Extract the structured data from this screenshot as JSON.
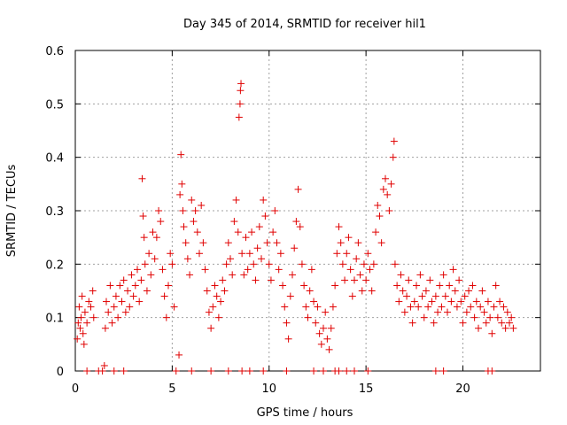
{
  "chart_data": {
    "type": "scatter",
    "title": "Day 345 of 2014, SRMTID for receiver hil1",
    "xlabel": "GPS time / hours",
    "ylabel": "SRMTID / TECUs",
    "xlim": [
      0,
      24
    ],
    "ylim": [
      0,
      0.6
    ],
    "xticks": [
      0,
      5,
      10,
      15,
      20
    ],
    "yticks": [
      0,
      0.1,
      0.2,
      0.3,
      0.4,
      0.5,
      0.6
    ],
    "xtick_labels": [
      "0",
      "5",
      "10",
      "15",
      "20"
    ],
    "ytick_labels": [
      "0",
      "0.1",
      "0.2",
      "0.3",
      "0.4",
      "0.5",
      "0.6"
    ],
    "grid": true,
    "marker": "+",
    "color": "#e00000",
    "series": [
      {
        "name": "SRMTID",
        "points": [
          [
            0.1,
            0.06
          ],
          [
            0.15,
            0.09
          ],
          [
            0.2,
            0.12
          ],
          [
            0.25,
            0.08
          ],
          [
            0.3,
            0.1
          ],
          [
            0.35,
            0.14
          ],
          [
            0.4,
            0.07
          ],
          [
            0.45,
            0.05
          ],
          [
            0.5,
            0.11
          ],
          [
            0.6,
            0.09
          ],
          [
            0.7,
            0.13
          ],
          [
            0.8,
            0.12
          ],
          [
            0.9,
            0.15
          ],
          [
            0.95,
            0.1
          ],
          [
            1.5,
            0.01
          ],
          [
            1.55,
            0.08
          ],
          [
            1.6,
            0.13
          ],
          [
            1.7,
            0.11
          ],
          [
            1.8,
            0.16
          ],
          [
            1.9,
            0.09
          ],
          [
            2.0,
            0.12
          ],
          [
            2.1,
            0.14
          ],
          [
            2.2,
            0.1
          ],
          [
            2.3,
            0.16
          ],
          [
            2.4,
            0.13
          ],
          [
            2.5,
            0.17
          ],
          [
            2.6,
            0.11
          ],
          [
            2.7,
            0.15
          ],
          [
            2.8,
            0.12
          ],
          [
            2.9,
            0.18
          ],
          [
            3.0,
            0.14
          ],
          [
            3.1,
            0.16
          ],
          [
            3.2,
            0.19
          ],
          [
            3.3,
            0.13
          ],
          [
            3.4,
            0.17
          ],
          [
            3.45,
            0.36
          ],
          [
            3.5,
            0.29
          ],
          [
            3.55,
            0.25
          ],
          [
            3.6,
            0.2
          ],
          [
            3.7,
            0.15
          ],
          [
            3.8,
            0.22
          ],
          [
            3.9,
            0.18
          ],
          [
            4.0,
            0.26
          ],
          [
            4.1,
            0.21
          ],
          [
            4.2,
            0.25
          ],
          [
            4.3,
            0.3
          ],
          [
            4.4,
            0.28
          ],
          [
            4.5,
            0.19
          ],
          [
            4.6,
            0.14
          ],
          [
            4.7,
            0.1
          ],
          [
            4.8,
            0.16
          ],
          [
            4.9,
            0.22
          ],
          [
            5.0,
            0.2
          ],
          [
            5.1,
            0.12
          ],
          [
            5.35,
            0.03
          ],
          [
            5.4,
            0.33
          ],
          [
            5.45,
            0.405
          ],
          [
            5.5,
            0.35
          ],
          [
            5.55,
            0.3
          ],
          [
            5.6,
            0.27
          ],
          [
            5.7,
            0.24
          ],
          [
            5.8,
            0.21
          ],
          [
            5.9,
            0.18
          ],
          [
            6.0,
            0.32
          ],
          [
            6.1,
            0.28
          ],
          [
            6.2,
            0.3
          ],
          [
            6.3,
            0.26
          ],
          [
            6.4,
            0.22
          ],
          [
            6.5,
            0.31
          ],
          [
            6.6,
            0.24
          ],
          [
            6.7,
            0.19
          ],
          [
            6.8,
            0.15
          ],
          [
            6.9,
            0.11
          ],
          [
            7.0,
            0.08
          ],
          [
            7.1,
            0.12
          ],
          [
            7.2,
            0.16
          ],
          [
            7.3,
            0.14
          ],
          [
            7.4,
            0.1
          ],
          [
            7.5,
            0.13
          ],
          [
            7.6,
            0.17
          ],
          [
            7.7,
            0.15
          ],
          [
            7.8,
            0.2
          ],
          [
            7.9,
            0.24
          ],
          [
            8.0,
            0.21
          ],
          [
            8.1,
            0.18
          ],
          [
            8.2,
            0.28
          ],
          [
            8.3,
            0.32
          ],
          [
            8.4,
            0.26
          ],
          [
            8.45,
            0.475
          ],
          [
            8.5,
            0.5
          ],
          [
            8.52,
            0.525
          ],
          [
            8.55,
            0.538
          ],
          [
            8.6,
            0.22
          ],
          [
            8.7,
            0.18
          ],
          [
            8.8,
            0.25
          ],
          [
            8.9,
            0.19
          ],
          [
            9.0,
            0.22
          ],
          [
            9.1,
            0.26
          ],
          [
            9.2,
            0.2
          ],
          [
            9.3,
            0.17
          ],
          [
            9.4,
            0.23
          ],
          [
            9.5,
            0.27
          ],
          [
            9.6,
            0.21
          ],
          [
            9.7,
            0.32
          ],
          [
            9.8,
            0.29
          ],
          [
            9.9,
            0.24
          ],
          [
            10.0,
            0.2
          ],
          [
            10.1,
            0.17
          ],
          [
            10.2,
            0.26
          ],
          [
            10.3,
            0.3
          ],
          [
            10.4,
            0.24
          ],
          [
            10.5,
            0.19
          ],
          [
            10.6,
            0.22
          ],
          [
            10.7,
            0.16
          ],
          [
            10.8,
            0.12
          ],
          [
            10.9,
            0.09
          ],
          [
            11.0,
            0.06
          ],
          [
            11.1,
            0.14
          ],
          [
            11.2,
            0.18
          ],
          [
            11.3,
            0.23
          ],
          [
            11.4,
            0.28
          ],
          [
            11.5,
            0.34
          ],
          [
            11.6,
            0.27
          ],
          [
            11.7,
            0.2
          ],
          [
            11.8,
            0.16
          ],
          [
            11.9,
            0.12
          ],
          [
            12.0,
            0.1
          ],
          [
            12.1,
            0.15
          ],
          [
            12.2,
            0.19
          ],
          [
            12.3,
            0.13
          ],
          [
            12.4,
            0.09
          ],
          [
            12.5,
            0.12
          ],
          [
            12.6,
            0.07
          ],
          [
            12.7,
            0.05
          ],
          [
            12.8,
            0.08
          ],
          [
            12.9,
            0.11
          ],
          [
            13.0,
            0.06
          ],
          [
            13.1,
            0.04
          ],
          [
            13.2,
            0.08
          ],
          [
            13.3,
            0.12
          ],
          [
            13.4,
            0.16
          ],
          [
            13.5,
            0.22
          ],
          [
            13.6,
            0.27
          ],
          [
            13.7,
            0.24
          ],
          [
            13.8,
            0.2
          ],
          [
            13.9,
            0.17
          ],
          [
            14.0,
            0.22
          ],
          [
            14.1,
            0.25
          ],
          [
            14.2,
            0.19
          ],
          [
            14.3,
            0.14
          ],
          [
            14.4,
            0.17
          ],
          [
            14.5,
            0.21
          ],
          [
            14.6,
            0.24
          ],
          [
            14.7,
            0.18
          ],
          [
            14.8,
            0.15
          ],
          [
            14.9,
            0.2
          ],
          [
            15.0,
            0.17
          ],
          [
            15.1,
            0.22
          ],
          [
            15.2,
            0.19
          ],
          [
            15.3,
            0.15
          ],
          [
            15.4,
            0.2
          ],
          [
            15.5,
            0.26
          ],
          [
            15.6,
            0.31
          ],
          [
            15.7,
            0.29
          ],
          [
            15.8,
            0.24
          ],
          [
            15.9,
            0.34
          ],
          [
            16.0,
            0.36
          ],
          [
            16.1,
            0.33
          ],
          [
            16.2,
            0.3
          ],
          [
            16.3,
            0.35
          ],
          [
            16.4,
            0.4
          ],
          [
            16.45,
            0.43
          ],
          [
            16.5,
            0.2
          ],
          [
            16.6,
            0.16
          ],
          [
            16.7,
            0.13
          ],
          [
            16.8,
            0.18
          ],
          [
            16.9,
            0.15
          ],
          [
            17.0,
            0.11
          ],
          [
            17.1,
            0.14
          ],
          [
            17.2,
            0.17
          ],
          [
            17.3,
            0.12
          ],
          [
            17.4,
            0.09
          ],
          [
            17.5,
            0.13
          ],
          [
            17.6,
            0.16
          ],
          [
            17.7,
            0.12
          ],
          [
            17.8,
            0.18
          ],
          [
            17.9,
            0.14
          ],
          [
            18.0,
            0.1
          ],
          [
            18.1,
            0.15
          ],
          [
            18.2,
            0.12
          ],
          [
            18.3,
            0.17
          ],
          [
            18.4,
            0.13
          ],
          [
            18.5,
            0.09
          ],
          [
            18.6,
            0.14
          ],
          [
            18.7,
            0.11
          ],
          [
            18.8,
            0.16
          ],
          [
            18.9,
            0.12
          ],
          [
            19.0,
            0.18
          ],
          [
            19.1,
            0.14
          ],
          [
            19.2,
            0.11
          ],
          [
            19.3,
            0.16
          ],
          [
            19.4,
            0.13
          ],
          [
            19.5,
            0.19
          ],
          [
            19.6,
            0.15
          ],
          [
            19.7,
            0.12
          ],
          [
            19.8,
            0.17
          ],
          [
            19.9,
            0.13
          ],
          [
            20.0,
            0.09
          ],
          [
            20.1,
            0.14
          ],
          [
            20.2,
            0.11
          ],
          [
            20.3,
            0.15
          ],
          [
            20.4,
            0.12
          ],
          [
            20.5,
            0.16
          ],
          [
            20.6,
            0.1
          ],
          [
            20.7,
            0.13
          ],
          [
            20.8,
            0.08
          ],
          [
            20.9,
            0.12
          ],
          [
            21.0,
            0.15
          ],
          [
            21.1,
            0.11
          ],
          [
            21.2,
            0.09
          ],
          [
            21.3,
            0.13
          ],
          [
            21.4,
            0.1
          ],
          [
            21.5,
            0.07
          ],
          [
            21.6,
            0.12
          ],
          [
            21.7,
            0.16
          ],
          [
            21.8,
            0.1
          ],
          [
            21.9,
            0.13
          ],
          [
            22.0,
            0.09
          ],
          [
            22.1,
            0.12
          ],
          [
            22.2,
            0.08
          ],
          [
            22.3,
            0.11
          ],
          [
            22.4,
            0.09
          ],
          [
            22.5,
            0.1
          ],
          [
            22.6,
            0.08
          ],
          [
            0.6,
            0.0
          ],
          [
            1.2,
            0.0
          ],
          [
            1.4,
            0.0
          ],
          [
            2.0,
            0.0
          ],
          [
            2.5,
            0.0
          ],
          [
            5.2,
            0.0
          ],
          [
            6.0,
            0.0
          ],
          [
            7.0,
            0.0
          ],
          [
            7.9,
            0.0
          ],
          [
            8.6,
            0.0
          ],
          [
            9.0,
            0.0
          ],
          [
            9.7,
            0.0
          ],
          [
            10.9,
            0.0
          ],
          [
            12.3,
            0.0
          ],
          [
            12.8,
            0.0
          ],
          [
            13.4,
            0.0
          ],
          [
            13.6,
            0.0
          ],
          [
            14.0,
            0.0
          ],
          [
            14.4,
            0.0
          ],
          [
            15.1,
            0.0
          ],
          [
            18.6,
            0.0
          ],
          [
            19.0,
            0.0
          ],
          [
            21.3,
            0.0
          ],
          [
            21.5,
            0.0
          ]
        ]
      }
    ]
  }
}
